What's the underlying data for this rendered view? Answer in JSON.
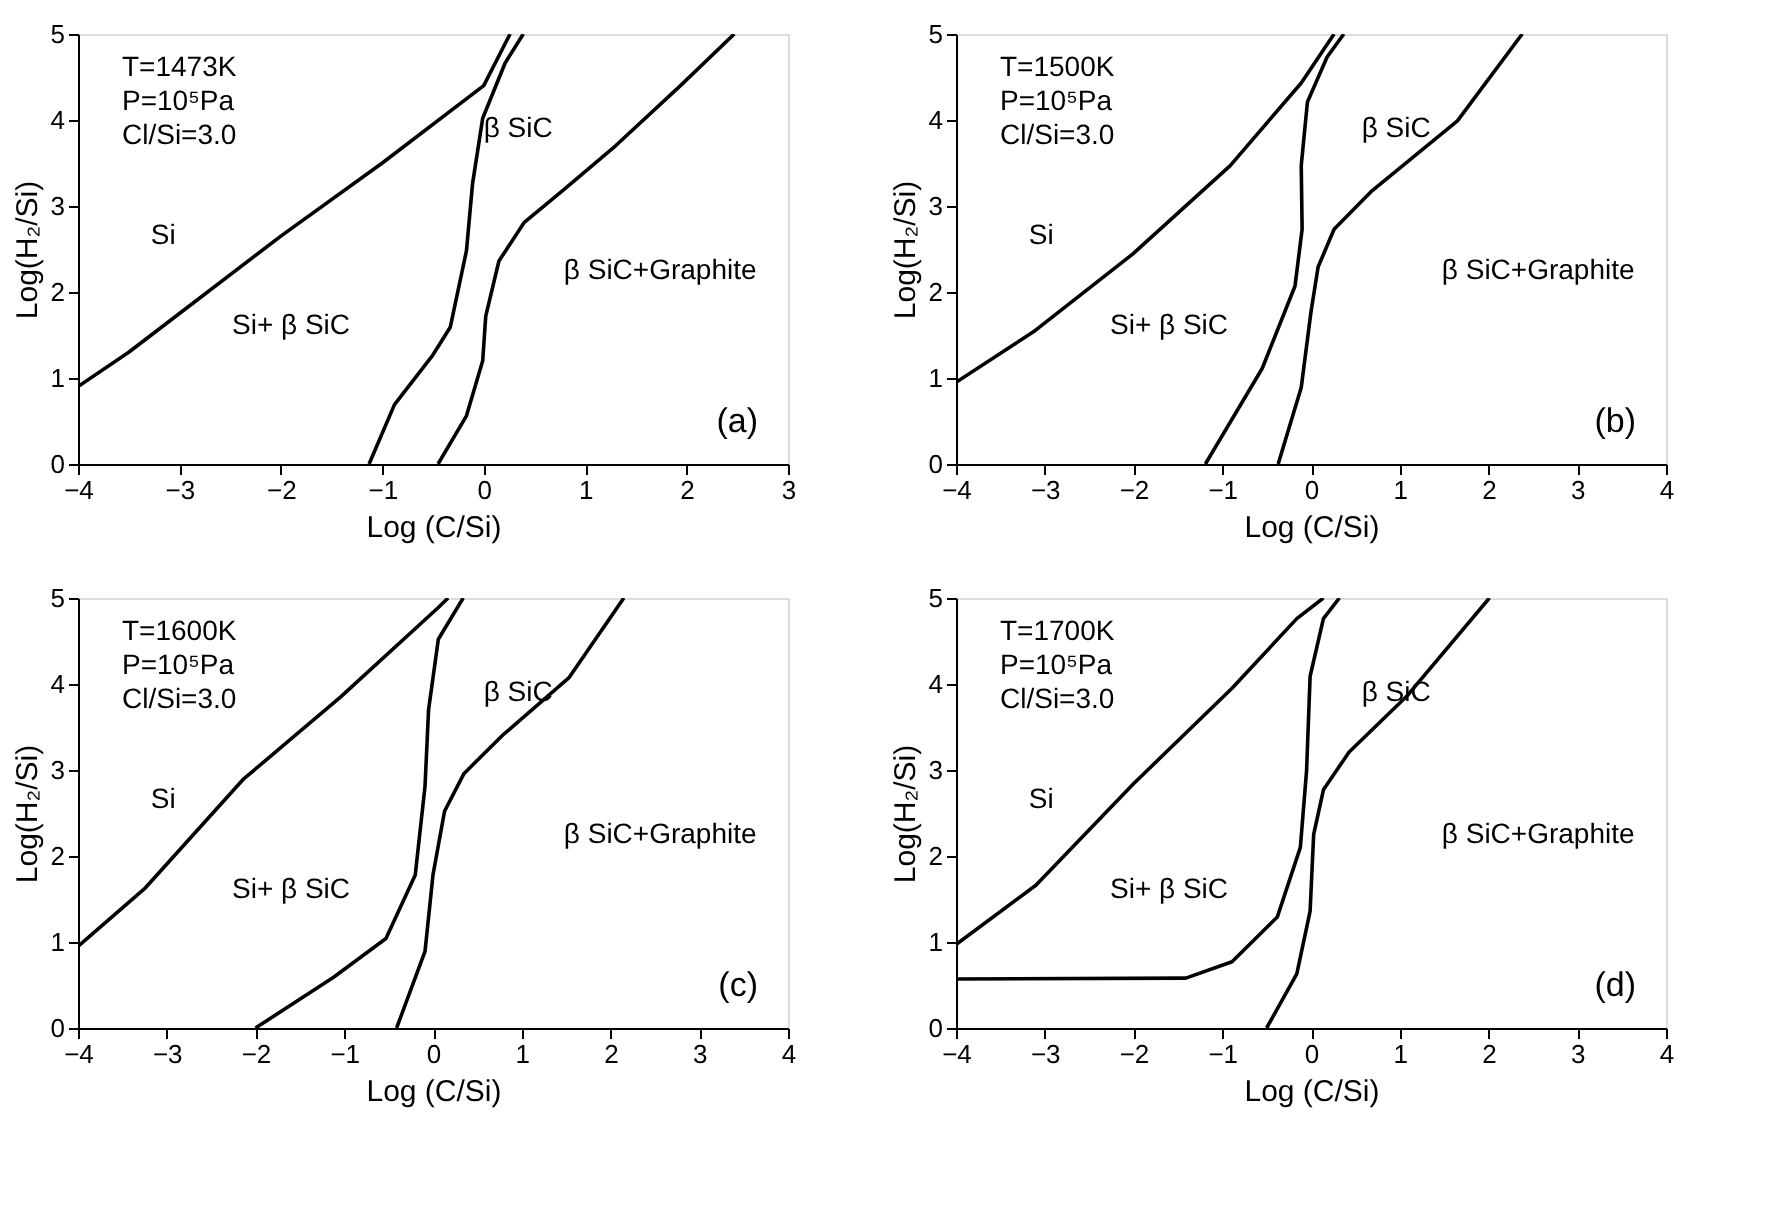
{
  "chart_data": [
    {
      "type": "line",
      "xlabel": "Log (C/Si)",
      "ylabel": "Log(H₂/Si)",
      "xlim": [
        -4,
        3
      ],
      "xticks": [
        -4,
        -3,
        -2,
        -1,
        0,
        1,
        2,
        3
      ],
      "ylim": [
        0,
        5
      ],
      "yticks": [
        0,
        1,
        2,
        3,
        4,
        5
      ],
      "grid": false,
      "legend": false,
      "marker": "none",
      "line_style": "solid",
      "series": [
        {
          "color": "#000000",
          "x": [
            -4,
            -3.5,
            -3,
            -2,
            -1,
            0,
            0.26
          ],
          "values": [
            0.9,
            1.3,
            1.75,
            2.65,
            3.5,
            4.4,
            5
          ]
        },
        {
          "color": "#000000",
          "x": [
            -1.13,
            -0.88,
            -0.5,
            -0.33,
            -0.17,
            -0.11,
            -0.01,
            0.21,
            0.39
          ],
          "values": [
            0,
            0.69,
            1.27,
            1.59,
            2.48,
            3.26,
            4.02,
            4.66,
            5
          ]
        },
        {
          "color": "#000000",
          "x": [
            -0.45,
            -0.17,
            -0.01,
            0.02,
            0.15,
            0.4,
            0.79,
            1.3,
            1.94,
            2.47
          ],
          "values": [
            0,
            0.56,
            1.2,
            1.72,
            2.36,
            2.81,
            3.19,
            3.7,
            4.4,
            5
          ]
        }
      ],
      "annotations": [
        "Si",
        "Si+ β SiC",
        "β SiC",
        "β SiC+Graphite",
        "T=1473K",
        "P=10⁵Pa",
        "Cl/Si=3.0",
        "(a)"
      ]
    },
    {
      "type": "line",
      "xlabel": "Log (C/Si)",
      "ylabel": "Log(H₂/Si)",
      "xlim": [
        -4,
        4
      ],
      "xticks": [
        -4,
        -3,
        -2,
        -1,
        0,
        1,
        2,
        3,
        4
      ],
      "ylim": [
        0,
        5
      ],
      "yticks": [
        0,
        1,
        2,
        3,
        4,
        5
      ],
      "grid": false,
      "legend": false,
      "marker": "none",
      "line_style": "solid",
      "series": [
        {
          "color": "#000000",
          "x": [
            -4,
            -3.11,
            -2.01,
            -0.91,
            -0.11,
            0.26
          ],
          "values": [
            0.95,
            1.55,
            2.44,
            3.47,
            4.43,
            5
          ]
        },
        {
          "color": "#000000",
          "x": [
            -1.19,
            -0.55,
            -0.18,
            -0.1,
            -0.11,
            -0.04,
            0.18,
            0.37
          ],
          "values": [
            0,
            1.11,
            2.07,
            2.73,
            3.47,
            4.21,
            4.73,
            5
          ]
        },
        {
          "color": "#000000",
          "x": [
            -0.37,
            -0.11,
            0,
            0.08,
            0.26,
            0.69,
            1.65,
            2.38
          ],
          "values": [
            0,
            0.89,
            1.77,
            2.29,
            2.73,
            3.18,
            3.99,
            5
          ]
        }
      ],
      "annotations": [
        "Si",
        "Si+ β SiC",
        "β SiC",
        "β SiC+Graphite",
        "T=1500K",
        "P=10⁵Pa",
        "Cl/Si=3.0",
        "(b)"
      ]
    },
    {
      "type": "line",
      "xlabel": "Log (C/Si)",
      "ylabel": "Log(H₂/Si)",
      "xlim": [
        -4,
        4
      ],
      "xticks": [
        -4,
        -3,
        -2,
        -1,
        0,
        1,
        2,
        3,
        4
      ],
      "ylim": [
        0,
        5
      ],
      "yticks": [
        0,
        1,
        2,
        3,
        4,
        5
      ],
      "grid": false,
      "legend": false,
      "marker": "none",
      "line_style": "solid",
      "series": [
        {
          "color": "#000000",
          "x": [
            -4,
            -3.24,
            -2.14,
            -1.04,
            0.06,
            0.17
          ],
          "values": [
            0.95,
            1.63,
            2.89,
            3.85,
            4.89,
            5
          ]
        },
        {
          "color": "#000000",
          "x": [
            -2.0,
            -1.12,
            -0.53,
            -0.2,
            -0.09,
            -0.05,
            0.06,
            0.34
          ],
          "values": [
            0,
            0.59,
            1.04,
            1.78,
            2.81,
            3.7,
            4.52,
            5
          ]
        },
        {
          "color": "#000000",
          "x": [
            -0.41,
            -0.09,
            0,
            0.13,
            0.35,
            0.79,
            1.53,
            2.15
          ],
          "values": [
            0,
            0.89,
            1.78,
            2.52,
            2.96,
            3.41,
            4.07,
            5
          ]
        }
      ],
      "annotations": [
        "Si",
        "Si+ β SiC",
        "β SiC",
        "β SiC+Graphite",
        "T=1600K",
        "P=10⁵Pa",
        "Cl/Si=3.0",
        "(c)"
      ]
    },
    {
      "type": "line",
      "xlabel": "Log (C/Si)",
      "ylabel": "Log(H₂/Si)",
      "xlim": [
        -4,
        4
      ],
      "xticks": [
        -4,
        -3,
        -2,
        -1,
        0,
        1,
        2,
        3,
        4
      ],
      "ylim": [
        0,
        5
      ],
      "yticks": [
        0,
        1,
        2,
        3,
        4,
        5
      ],
      "grid": false,
      "legend": false,
      "marker": "none",
      "line_style": "solid",
      "series": [
        {
          "color": "#000000",
          "x": [
            -4,
            -3.1,
            -2.0,
            -0.89,
            -0.16,
            0.14
          ],
          "values": [
            0.97,
            1.66,
            2.84,
            3.95,
            4.76,
            5
          ]
        },
        {
          "color": "#000000",
          "x": [
            -4,
            -1.41,
            -0.89,
            -0.38,
            -0.12,
            -0.05,
            -0.01,
            0.14,
            0.32
          ],
          "values": [
            0.57,
            0.58,
            0.77,
            1.29,
            2.1,
            2.99,
            4.09,
            4.76,
            5
          ]
        },
        {
          "color": "#000000",
          "x": [
            -0.5,
            -0.16,
            -0.01,
            0.03,
            0.14,
            0.43,
            1.09,
            2.01
          ],
          "values": [
            0,
            0.63,
            1.36,
            2.25,
            2.77,
            3.21,
            3.87,
            5
          ]
        }
      ],
      "annotations": [
        "Si",
        "Si+ β SiC",
        "β SiC",
        "β SiC+Graphite",
        "T=1700K",
        "P=10⁵Pa",
        "Cl/Si=3.0",
        "(d)"
      ]
    }
  ]
}
